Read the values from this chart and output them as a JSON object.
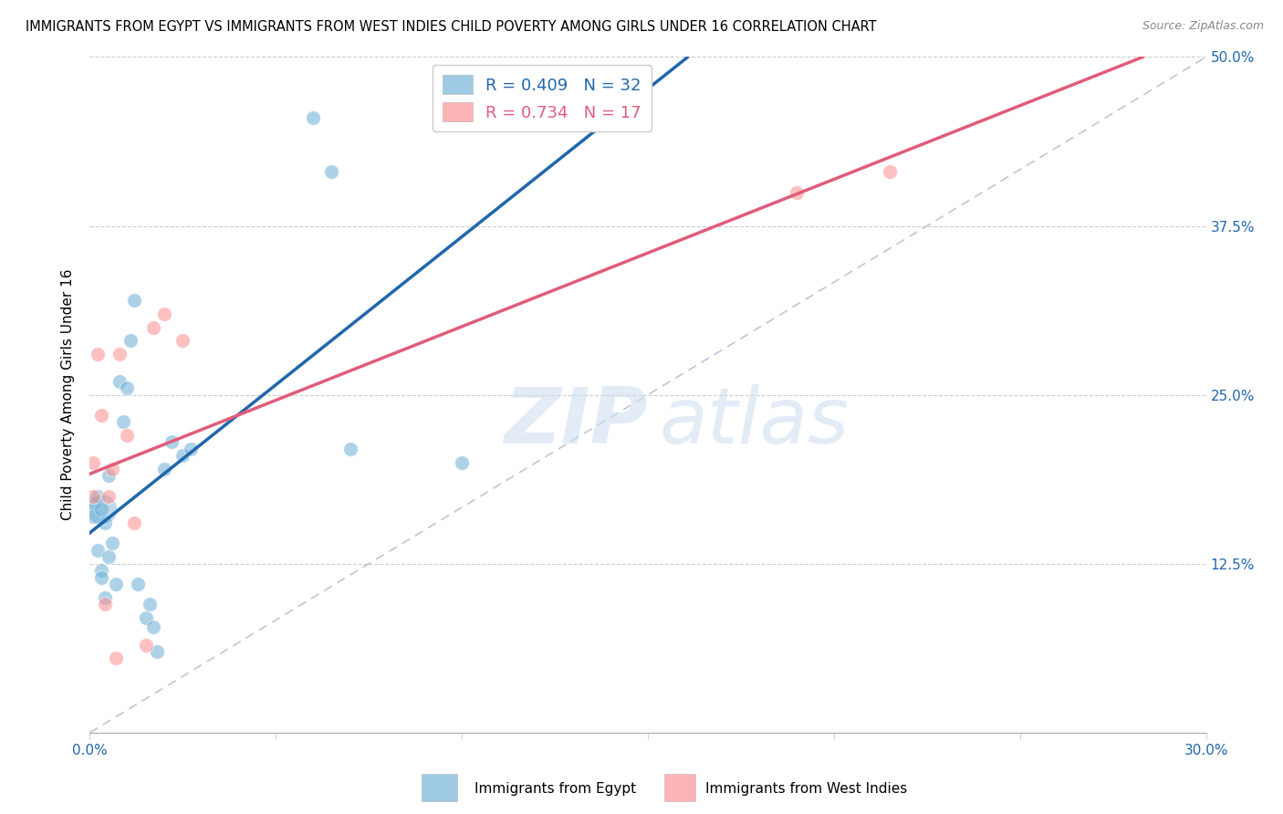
{
  "title": "IMMIGRANTS FROM EGYPT VS IMMIGRANTS FROM WEST INDIES CHILD POVERTY AMONG GIRLS UNDER 16 CORRELATION CHART",
  "source": "Source: ZipAtlas.com",
  "ylabel": "Child Poverty Among Girls Under 16",
  "xlim": [
    0.0,
    0.3
  ],
  "ylim": [
    0.0,
    0.5
  ],
  "xticks": [
    0.0,
    0.05,
    0.1,
    0.15,
    0.2,
    0.25,
    0.3
  ],
  "yticks": [
    0.0,
    0.125,
    0.25,
    0.375,
    0.5
  ],
  "right_ytick_labels": [
    "",
    "12.5%",
    "25.0%",
    "37.5%",
    "50.0%"
  ],
  "xtick_labels_show": [
    "0.0%",
    "",
    "",
    "",
    "",
    "",
    "30.0%"
  ],
  "legend_blue_r": "R = 0.409",
  "legend_blue_n": "N = 32",
  "legend_pink_r": "R = 0.734",
  "legend_pink_n": "N = 17",
  "blue_color": "#6baed6",
  "pink_color": "#fc8d8d",
  "blue_line_color": "#2166ac",
  "pink_line_color": "#e05c7a",
  "diag_line_color": "#b0b8cc",
  "egypt_x": [
    0.001,
    0.001,
    0.002,
    0.002,
    0.003,
    0.003,
    0.004,
    0.005,
    0.005,
    0.006,
    0.007,
    0.008,
    0.009,
    0.01,
    0.011,
    0.012,
    0.013,
    0.015,
    0.016,
    0.017,
    0.018,
    0.02,
    0.022,
    0.025,
    0.027,
    0.06,
    0.065,
    0.07,
    0.1,
    0.11,
    0.003,
    0.004
  ],
  "egypt_y": [
    0.17,
    0.16,
    0.135,
    0.175,
    0.12,
    0.165,
    0.1,
    0.19,
    0.13,
    0.14,
    0.11,
    0.26,
    0.23,
    0.255,
    0.29,
    0.32,
    0.11,
    0.085,
    0.095,
    0.078,
    0.06,
    0.195,
    0.215,
    0.205,
    0.21,
    0.455,
    0.415,
    0.21,
    0.2,
    0.455,
    0.115,
    0.155
  ],
  "windies_x": [
    0.001,
    0.001,
    0.002,
    0.003,
    0.004,
    0.005,
    0.006,
    0.007,
    0.008,
    0.01,
    0.012,
    0.015,
    0.017,
    0.02,
    0.025,
    0.19,
    0.215
  ],
  "windies_y": [
    0.175,
    0.2,
    0.28,
    0.235,
    0.095,
    0.175,
    0.195,
    0.055,
    0.28,
    0.22,
    0.155,
    0.065,
    0.3,
    0.31,
    0.29,
    0.4,
    0.415
  ],
  "egypt_large_x": [
    0.003
  ],
  "egypt_large_y": [
    0.165
  ]
}
